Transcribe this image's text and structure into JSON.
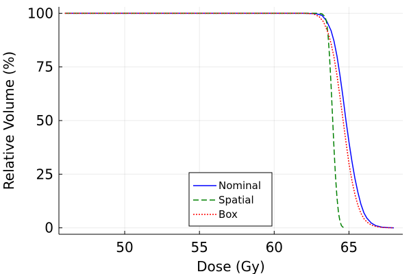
{
  "chart_data": {
    "type": "line",
    "title": "",
    "xlabel": "Dose (Gy)",
    "ylabel": "Relative Volume (%)",
    "xlim": [
      45.6,
      68.6
    ],
    "ylim": [
      -3,
      103
    ],
    "xticks": [
      50,
      55,
      60,
      65
    ],
    "yticks": [
      0,
      25,
      50,
      75,
      100
    ],
    "grid": true,
    "legend": {
      "position": "bottom-center"
    },
    "series": [
      {
        "name": "Nominal",
        "color": "#0000ff",
        "style": "solid",
        "x": [
          46,
          55,
          62,
          62.8,
          63.2,
          63.5,
          63.8,
          64.0,
          64.2,
          64.4,
          64.6,
          64.8,
          65.0,
          65.2,
          65.4,
          65.6,
          65.8,
          66.0,
          66.2,
          66.5,
          66.8,
          67.2,
          67.6,
          68.0
        ],
        "y": [
          100,
          100,
          100,
          99.8,
          99,
          96.5,
          92,
          87,
          80,
          71,
          61,
          50,
          40,
          31,
          23,
          16.5,
          11,
          7,
          4.5,
          2.2,
          1,
          0.3,
          0.1,
          0
        ]
      },
      {
        "name": "Spatial",
        "color": "#008000",
        "style": "dashed",
        "x": [
          46,
          55,
          62,
          63.0,
          63.2,
          63.4,
          63.5,
          63.6,
          63.7,
          63.8,
          63.9,
          64.0,
          64.1,
          64.2,
          64.3,
          64.4,
          64.5,
          64.6,
          64.7
        ],
        "y": [
          100,
          100,
          100,
          100,
          99.7,
          98.5,
          96,
          90,
          80,
          67,
          52,
          37,
          24,
          14,
          7,
          3,
          1,
          0.3,
          0
        ]
      },
      {
        "name": "Box",
        "color": "#ff0000",
        "style": "dotted",
        "x": [
          46,
          55,
          62,
          62.6,
          63.0,
          63.3,
          63.6,
          63.8,
          64.0,
          64.2,
          64.4,
          64.6,
          64.8,
          65.0,
          65.2,
          65.4,
          65.6,
          65.8,
          66.0,
          66.2,
          66.5,
          66.8,
          67.2,
          67.6,
          68.0
        ],
        "y": [
          100,
          100,
          100,
          99.8,
          98.5,
          96,
          91,
          86,
          79.5,
          71,
          61,
          50.5,
          40,
          30,
          22,
          15.5,
          10.5,
          6.8,
          4.3,
          2.7,
          1.3,
          0.6,
          0.2,
          0.05,
          0
        ]
      }
    ]
  }
}
